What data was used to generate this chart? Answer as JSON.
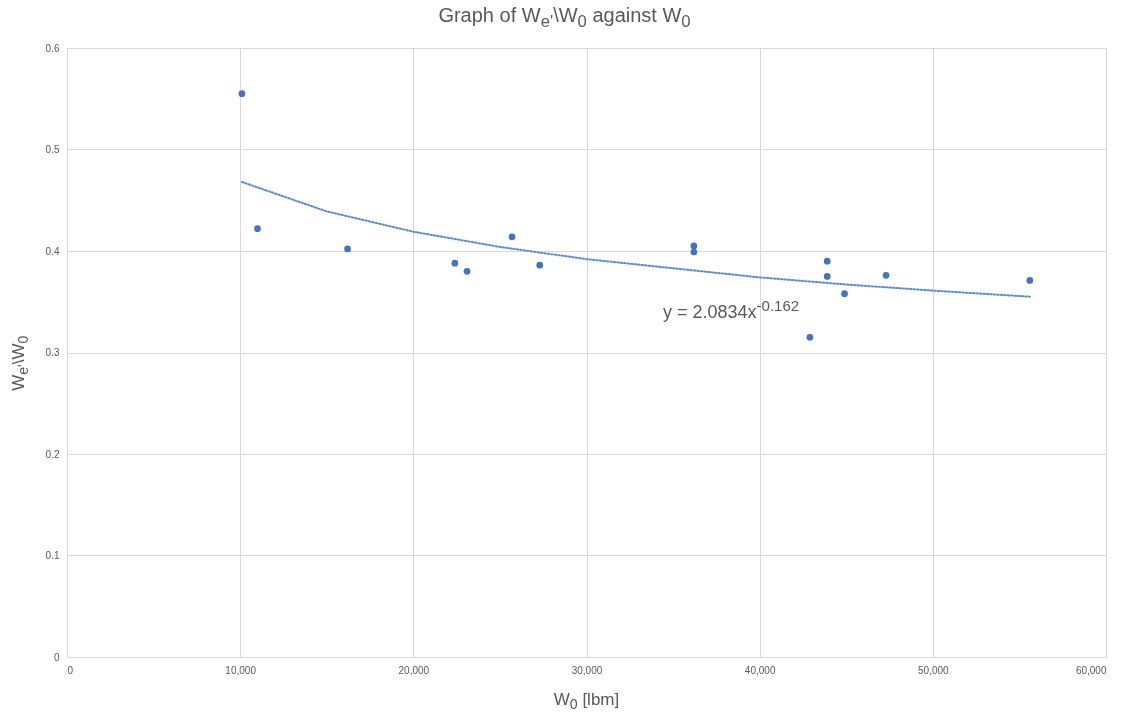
{
  "chart_data": {
    "type": "scatter",
    "title": "Graph of W$_{e'}$\\W$_{0}$ against W$_{0}$",
    "xlabel": "W$_{0}$ [lbm]",
    "ylabel": "W$_{e'}$\\W$_{0}$",
    "xlim": [
      0,
      60000
    ],
    "xticks": [
      0,
      {
        "value": 10000,
        "label": "10,000"
      },
      {
        "value": 20000,
        "label": "20,000"
      },
      {
        "value": 30000,
        "label": "30,000"
      },
      {
        "value": 40000,
        "label": "40,000"
      },
      {
        "value": 50000,
        "label": "50,000"
      },
      {
        "value": 60000,
        "label": "60,000"
      }
    ],
    "ylim": [
      0,
      0.6
    ],
    "yticks": [
      0,
      0.1,
      0.2,
      0.3,
      0.4,
      0.5,
      0.6
    ],
    "grid": true,
    "series": [
      {
        "marker": "circle",
        "color": "#4472c4",
        "x": [
          10100,
          11000,
          16200,
          22400,
          23100,
          25700,
          27300,
          36200,
          36200,
          42900,
          43900,
          43900,
          44900,
          47300,
          55600
        ],
        "values": [
          0.555,
          0.422,
          0.402,
          0.388,
          0.38,
          0.414,
          0.386,
          0.405,
          0.399,
          0.315,
          0.39,
          0.375,
          0.358,
          0.376,
          0.371
        ]
      },
      {
        "type": "line",
        "color": "#5b8bd6",
        "line_style": "dotted",
        "x": [
          10100,
          15000,
          20000,
          25000,
          30000,
          35000,
          40000,
          45000,
          50000,
          55600
        ],
        "values": [
          0.468,
          0.439,
          0.419,
          0.404,
          0.392,
          0.383,
          0.374,
          0.367,
          0.361,
          0.355
        ]
      }
    ],
    "annotations": [
      "y = 2.0834x$^{-0.162}$"
    ]
  }
}
